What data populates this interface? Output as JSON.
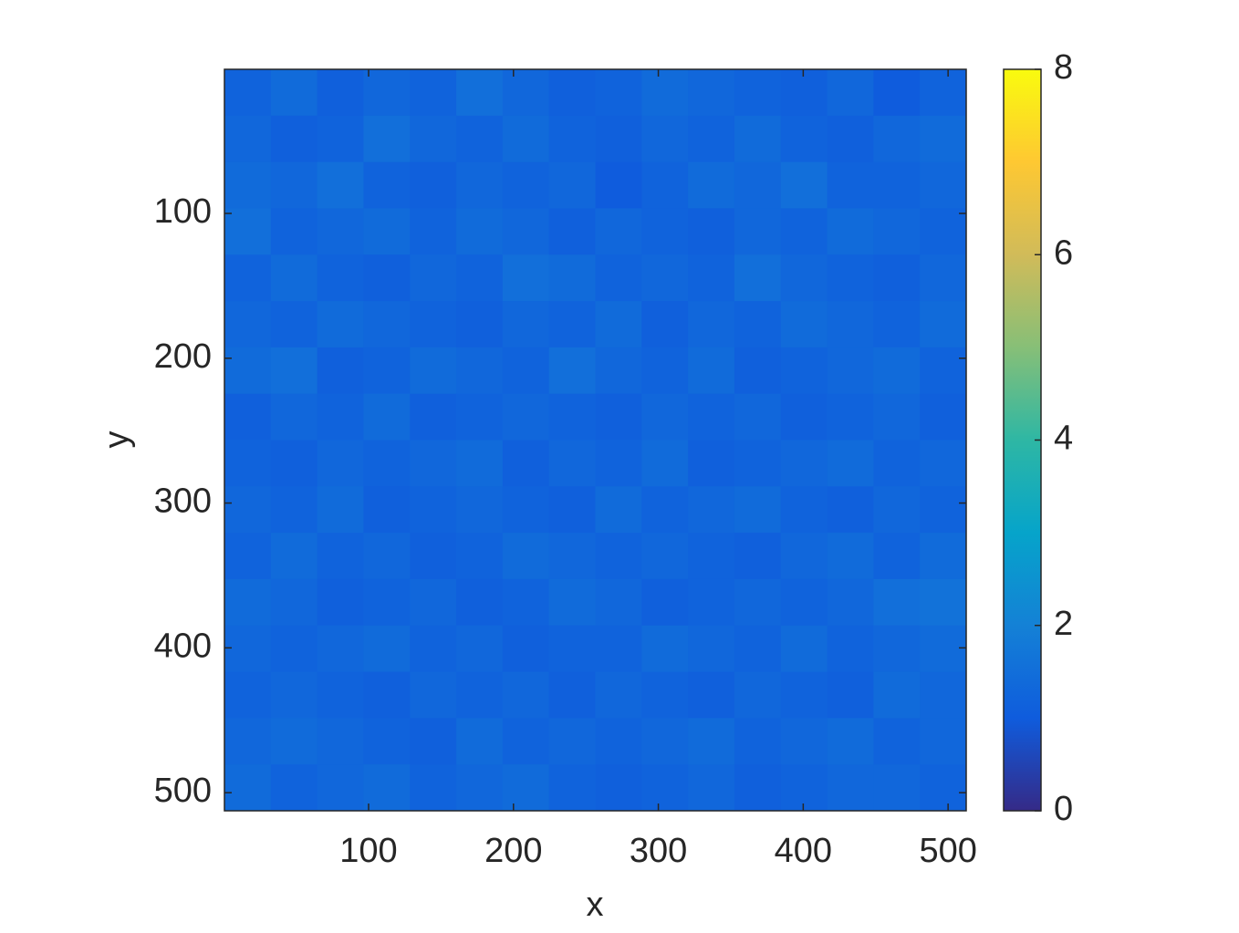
{
  "chart_data": {
    "type": "heatmap",
    "xlabel": "x",
    "ylabel": "y",
    "xlim": [
      0.5,
      512.5
    ],
    "ylim": [
      0.5,
      512.5
    ],
    "y_reversed": true,
    "xticks": [
      100,
      200,
      300,
      400,
      500
    ],
    "yticks": [
      100,
      200,
      300,
      400,
      500
    ],
    "clim": [
      0,
      8
    ],
    "cticks": [
      0,
      2,
      4,
      6,
      8
    ],
    "colormap": [
      "#352a87",
      "#0f5cdd",
      "#1481d6",
      "#06a4ca",
      "#2eb7a4",
      "#87bf77",
      "#d1bb59",
      "#fec832",
      "#f9fb0e"
    ],
    "z": [
      [
        1.2,
        1.4,
        1.1,
        1.3,
        1.2,
        1.5,
        1.3,
        1.1,
        1.2,
        1.4,
        1.3,
        1.2,
        1.1,
        1.3,
        1.0,
        1.2
      ],
      [
        1.3,
        1.1,
        1.2,
        1.5,
        1.3,
        1.2,
        1.4,
        1.2,
        1.1,
        1.3,
        1.2,
        1.4,
        1.2,
        1.1,
        1.3,
        1.4
      ],
      [
        1.4,
        1.3,
        1.5,
        1.2,
        1.1,
        1.3,
        1.2,
        1.3,
        1.0,
        1.2,
        1.4,
        1.3,
        1.5,
        1.2,
        1.2,
        1.3
      ],
      [
        1.5,
        1.2,
        1.3,
        1.4,
        1.2,
        1.4,
        1.3,
        1.1,
        1.3,
        1.2,
        1.1,
        1.3,
        1.2,
        1.4,
        1.3,
        1.2
      ],
      [
        1.2,
        1.4,
        1.2,
        1.1,
        1.3,
        1.2,
        1.5,
        1.4,
        1.2,
        1.3,
        1.2,
        1.5,
        1.3,
        1.2,
        1.1,
        1.3
      ],
      [
        1.3,
        1.2,
        1.4,
        1.3,
        1.2,
        1.1,
        1.3,
        1.2,
        1.4,
        1.1,
        1.3,
        1.2,
        1.4,
        1.3,
        1.2,
        1.4
      ],
      [
        1.4,
        1.5,
        1.1,
        1.2,
        1.4,
        1.3,
        1.2,
        1.5,
        1.3,
        1.2,
        1.4,
        1.1,
        1.2,
        1.3,
        1.4,
        1.2
      ],
      [
        1.1,
        1.3,
        1.2,
        1.4,
        1.1,
        1.2,
        1.3,
        1.2,
        1.1,
        1.3,
        1.2,
        1.3,
        1.1,
        1.2,
        1.3,
        1.1
      ],
      [
        1.2,
        1.1,
        1.3,
        1.2,
        1.3,
        1.4,
        1.1,
        1.3,
        1.2,
        1.4,
        1.1,
        1.2,
        1.3,
        1.4,
        1.2,
        1.3
      ],
      [
        1.3,
        1.2,
        1.4,
        1.1,
        1.2,
        1.3,
        1.2,
        1.1,
        1.4,
        1.2,
        1.3,
        1.4,
        1.2,
        1.1,
        1.3,
        1.2
      ],
      [
        1.2,
        1.4,
        1.2,
        1.3,
        1.1,
        1.2,
        1.4,
        1.3,
        1.2,
        1.3,
        1.2,
        1.1,
        1.3,
        1.4,
        1.2,
        1.4
      ],
      [
        1.4,
        1.3,
        1.1,
        1.2,
        1.3,
        1.1,
        1.2,
        1.4,
        1.3,
        1.1,
        1.2,
        1.3,
        1.2,
        1.3,
        1.5,
        1.6
      ],
      [
        1.3,
        1.2,
        1.3,
        1.4,
        1.2,
        1.3,
        1.1,
        1.2,
        1.2,
        1.4,
        1.3,
        1.2,
        1.4,
        1.2,
        1.3,
        1.4
      ],
      [
        1.2,
        1.3,
        1.2,
        1.1,
        1.3,
        1.2,
        1.3,
        1.1,
        1.3,
        1.2,
        1.1,
        1.3,
        1.2,
        1.1,
        1.4,
        1.3
      ],
      [
        1.3,
        1.4,
        1.3,
        1.2,
        1.1,
        1.4,
        1.2,
        1.3,
        1.2,
        1.3,
        1.4,
        1.2,
        1.3,
        1.4,
        1.2,
        1.3
      ],
      [
        1.4,
        1.2,
        1.3,
        1.4,
        1.2,
        1.3,
        1.4,
        1.2,
        1.1,
        1.2,
        1.3,
        1.1,
        1.2,
        1.3,
        1.3,
        1.2
      ]
    ]
  }
}
